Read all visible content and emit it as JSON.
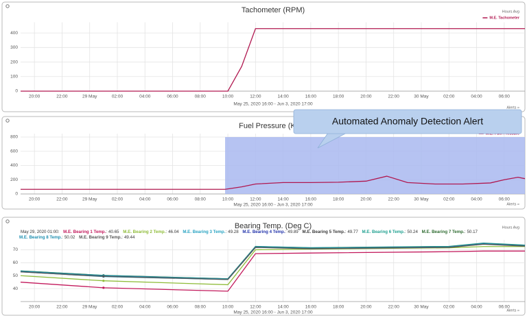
{
  "chart_data": [
    {
      "type": "line",
      "title": "Tachometer (RPM)",
      "subtitle": "May 25, 2020 16:00 - Jun 3, 2020 17:00",
      "aggregation": "Hours Avg",
      "alerts_label": "Alerts »",
      "x": [
        19,
        34,
        35,
        36,
        55.5
      ],
      "series": [
        {
          "name": "M.E. Tachometer",
          "color": "#b0174f",
          "values": [
            0,
            0,
            170,
            430,
            430
          ]
        }
      ],
      "xlim": [
        19,
        55.5
      ],
      "xticks": [
        {
          "value": 20,
          "label": "20:00"
        },
        {
          "value": 22,
          "label": "22:00"
        },
        {
          "value": 24,
          "label": "29 May"
        },
        {
          "value": 26,
          "label": "02:00"
        },
        {
          "value": 28,
          "label": "04:00"
        },
        {
          "value": 30,
          "label": "06:00"
        },
        {
          "value": 32,
          "label": "08:00"
        },
        {
          "value": 34,
          "label": "10:00"
        },
        {
          "value": 36,
          "label": "12:00"
        },
        {
          "value": 38,
          "label": "14:00"
        },
        {
          "value": 40,
          "label": "16:00"
        },
        {
          "value": 42,
          "label": "18:00"
        },
        {
          "value": 44,
          "label": "20:00"
        },
        {
          "value": 46,
          "label": "22:00"
        },
        {
          "value": 48,
          "label": "30 May"
        },
        {
          "value": 50,
          "label": "02:00"
        },
        {
          "value": 52,
          "label": "04:00"
        },
        {
          "value": 54,
          "label": "06:00"
        }
      ],
      "ylim": [
        0,
        450
      ],
      "yticks": [
        0,
        100,
        200,
        300,
        400
      ],
      "grid": true,
      "legend": "top-right"
    },
    {
      "type": "line",
      "title": "Fuel Pressure (KPa)",
      "subtitle": "May 25, 2020 16:00 - Jun 3, 2020 17:00",
      "aggregation": "Hours Avg",
      "alerts_label": "Alerts »",
      "annotation": "Automated Anomaly Detection Alert",
      "highlight_x": [
        33.8,
        55.5
      ],
      "highlight_color": "#a9b9f0",
      "x": [
        19,
        33.8,
        35,
        36,
        38,
        40,
        42,
        44,
        45.5,
        47,
        49,
        51,
        53,
        54,
        55,
        55.5
      ],
      "series": [
        {
          "name": "M.E. Fuel Pressure",
          "color": "#b0174f",
          "values": [
            65,
            65,
            100,
            140,
            160,
            160,
            165,
            180,
            250,
            160,
            140,
            140,
            155,
            200,
            235,
            215
          ]
        }
      ],
      "xlim": [
        19,
        55.5
      ],
      "xticks": [
        {
          "value": 20,
          "label": "20:00"
        },
        {
          "value": 22,
          "label": "22:00"
        },
        {
          "value": 24,
          "label": "29 May"
        },
        {
          "value": 26,
          "label": "02:00"
        },
        {
          "value": 28,
          "label": "04:00"
        },
        {
          "value": 30,
          "label": "06:00"
        },
        {
          "value": 32,
          "label": "08:00"
        },
        {
          "value": 34,
          "label": "10:00"
        },
        {
          "value": 36,
          "label": "12:00"
        },
        {
          "value": 38,
          "label": "14:00"
        },
        {
          "value": 40,
          "label": "16:00"
        },
        {
          "value": 42,
          "label": "18:00"
        },
        {
          "value": 44,
          "label": "20:00"
        },
        {
          "value": 46,
          "label": "22:00"
        },
        {
          "value": 48,
          "label": "30 May"
        },
        {
          "value": 50,
          "label": "02:00"
        },
        {
          "value": 52,
          "label": "04:00"
        },
        {
          "value": 54,
          "label": "06:00"
        }
      ],
      "ylim": [
        0,
        800
      ],
      "yticks": [
        0,
        200,
        400,
        600,
        800
      ],
      "grid": true,
      "legend": "top-right"
    },
    {
      "type": "line",
      "title": "Bearing Temp. (Deg C)",
      "subtitle": "May 25, 2020 16:00 - Jun 3, 2020 17:00",
      "aggregation": "Hours Avg",
      "alerts_label": "Alerts »",
      "tooltip": {
        "label": "May 29, 2020 01:00:",
        "x": 25,
        "separator": ":"
      },
      "x": [
        19,
        25,
        34,
        36,
        40,
        50,
        52.5,
        55.5
      ],
      "series": [
        {
          "name": "M.E. Bearing 1 Temp.",
          "color": "#c2185b",
          "values": [
            45,
            40.65,
            38,
            67,
            67.5,
            68.5,
            69,
            69
          ]
        },
        {
          "name": "M.E. Bearing 2 Temp.",
          "color": "#8fbc3a",
          "values": [
            50,
            46.04,
            43,
            70,
            70.5,
            71.5,
            72.5,
            72.5
          ]
        },
        {
          "name": "M.E. Bearing 3 Temp.",
          "color": "#29a3c2",
          "values": [
            53,
            49.28,
            47,
            72,
            71,
            72,
            74.5,
            73
          ]
        },
        {
          "name": "M.E. Bearing 4 Temp.",
          "color": "#2233aa",
          "values": [
            53.5,
            49.89,
            47.5,
            72.5,
            71.5,
            72.5,
            75,
            73.5
          ]
        },
        {
          "name": "M.E. Bearing 5 Temp.",
          "color": "#3a3a3a",
          "values": [
            53.2,
            49.77,
            47.2,
            72.2,
            71.2,
            72.2,
            74.8,
            73.2
          ]
        },
        {
          "name": "M.E. Bearing 6 Temp.",
          "color": "#20a090",
          "values": [
            53.7,
            50.24,
            47.6,
            72.6,
            71.6,
            72.6,
            75.2,
            73.6
          ]
        },
        {
          "name": "M.E. Bearing 7 Temp.",
          "color": "#2e6b30",
          "values": [
            53.6,
            50.17,
            47.5,
            72.4,
            71.4,
            72.4,
            75,
            73.4
          ]
        },
        {
          "name": "M.E. Bearing 8 Temp.",
          "color": "#1f8fb0",
          "values": [
            53.4,
            50.02,
            47.4,
            72.3,
            71.3,
            72.3,
            74.9,
            73.3
          ]
        },
        {
          "name": "M.E. Bearing 9 Temp.",
          "color": "#555555",
          "values": [
            52.9,
            49.44,
            47,
            71.8,
            70.8,
            71.8,
            74.3,
            72.8
          ]
        }
      ],
      "xlim": [
        19,
        55.5
      ],
      "xticks": [
        {
          "value": 20,
          "label": "20:00"
        },
        {
          "value": 22,
          "label": "22:00"
        },
        {
          "value": 24,
          "label": "29 May"
        },
        {
          "value": 26,
          "label": "02:00"
        },
        {
          "value": 28,
          "label": "04:00"
        },
        {
          "value": 30,
          "label": "06:00"
        },
        {
          "value": 32,
          "label": "08:00"
        },
        {
          "value": 34,
          "label": "10:00"
        },
        {
          "value": 36,
          "label": "12:00"
        },
        {
          "value": 38,
          "label": "14:00"
        },
        {
          "value": 40,
          "label": "16:00"
        },
        {
          "value": 42,
          "label": "18:00"
        },
        {
          "value": 44,
          "label": "20:00"
        },
        {
          "value": 46,
          "label": "22:00"
        },
        {
          "value": 48,
          "label": "30 May"
        },
        {
          "value": 50,
          "label": "02:00"
        },
        {
          "value": 52,
          "label": "04:00"
        },
        {
          "value": 54,
          "label": "06:00"
        }
      ],
      "ylim": [
        30,
        75
      ],
      "yticks": [
        40,
        50,
        60,
        70
      ],
      "grid": true
    }
  ]
}
